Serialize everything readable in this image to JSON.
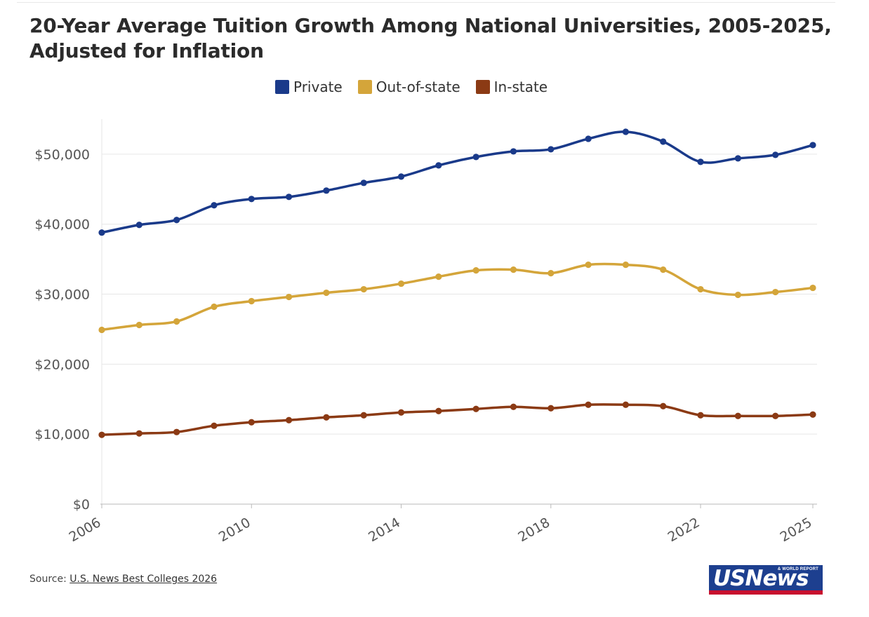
{
  "header": {
    "title": "20-Year Average Tuition Growth Among National Universities, 2005-2025, Adjusted for Inflation"
  },
  "legend": {
    "items": [
      {
        "label": "Private",
        "color": "#1a3a8a"
      },
      {
        "label": "Out-of-state",
        "color": "#d4a53a"
      },
      {
        "label": "In-state",
        "color": "#8b3a14"
      }
    ]
  },
  "footer": {
    "source_prefix": "Source: ",
    "source_link": "U.S. News Best Colleges 2026"
  },
  "logo": {
    "main": "USNews",
    "sub": "& WORLD REPORT"
  },
  "chart_data": {
    "type": "line",
    "title": "20-Year Average Tuition Growth Among National Universities, 2005-2025, Adjusted for Inflation",
    "x": [
      2006,
      2007,
      2008,
      2009,
      2010,
      2011,
      2012,
      2013,
      2014,
      2015,
      2016,
      2017,
      2018,
      2019,
      2020,
      2021,
      2022,
      2023,
      2024,
      2025
    ],
    "x_ticks": [
      2006,
      2010,
      2014,
      2018,
      2022,
      2025
    ],
    "x_tick_labels": [
      "2006",
      "2010",
      "2014",
      "2018",
      "2022",
      "2025"
    ],
    "xlim": [
      2006,
      2025
    ],
    "ylim": [
      0,
      55000
    ],
    "y_ticks": [
      0,
      10000,
      20000,
      30000,
      40000,
      50000
    ],
    "y_tick_labels": [
      "$0",
      "$10,000",
      "$20,000",
      "$30,000",
      "$40,000",
      "$50,000"
    ],
    "grid": true,
    "legend_position": "top-center",
    "series": [
      {
        "name": "Private",
        "color": "#1a3a8a",
        "values": [
          38800,
          39900,
          40600,
          42700,
          43600,
          43900,
          44800,
          45900,
          46800,
          48400,
          49600,
          50400,
          50700,
          52200,
          53200,
          51800,
          48900,
          49400,
          49900,
          51300
        ]
      },
      {
        "name": "Out-of-state",
        "color": "#d4a53a",
        "values": [
          24900,
          25600,
          26100,
          28200,
          29000,
          29600,
          30200,
          30700,
          31500,
          32500,
          33400,
          33500,
          33000,
          34200,
          34200,
          33500,
          30700,
          29900,
          30300,
          30900
        ]
      },
      {
        "name": "In-state",
        "color": "#8b3a14",
        "values": [
          9900,
          10100,
          10300,
          11200,
          11700,
          12000,
          12400,
          12700,
          13100,
          13300,
          13600,
          13900,
          13700,
          14200,
          14200,
          14000,
          12700,
          12600,
          12600,
          12800
        ]
      }
    ]
  }
}
